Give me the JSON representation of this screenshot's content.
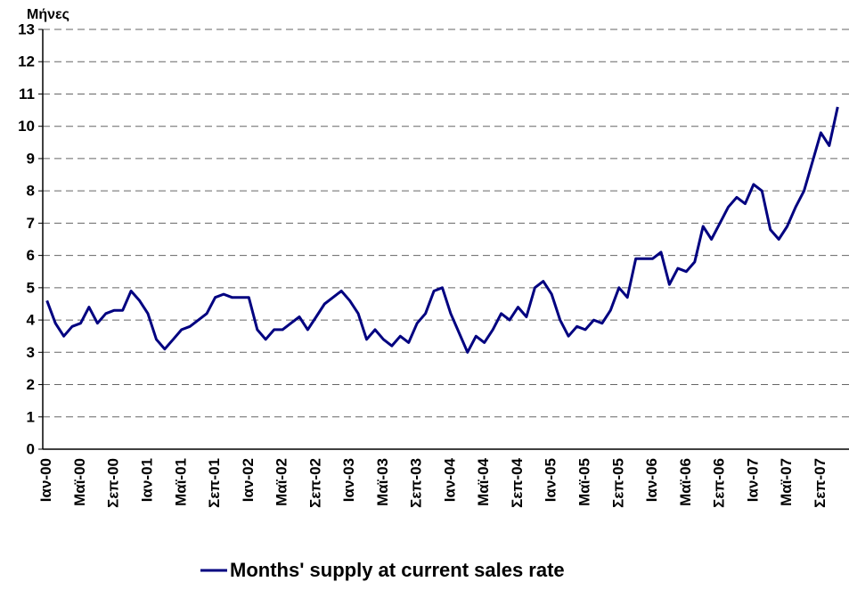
{
  "chart_data": {
    "type": "line",
    "y_label": "Μήνες",
    "categories": [
      "Ιαν-00",
      null,
      null,
      null,
      "Μαϊ-00",
      null,
      null,
      null,
      "Σεπ-00",
      null,
      null,
      null,
      "Ιαν-01",
      null,
      null,
      null,
      "Μαϊ-01",
      null,
      null,
      null,
      "Σεπ-01",
      null,
      null,
      null,
      "Ιαν-02",
      null,
      null,
      null,
      "Μαϊ-02",
      null,
      null,
      null,
      "Σεπ-02",
      null,
      null,
      null,
      "Ιαν-03",
      null,
      null,
      null,
      "Μαϊ-03",
      null,
      null,
      null,
      "Σεπ-03",
      null,
      null,
      null,
      "Ιαν-04",
      null,
      null,
      null,
      "Μαϊ-04",
      null,
      null,
      null,
      "Σεπ-04",
      null,
      null,
      null,
      "Ιαν-05",
      null,
      null,
      null,
      "Μαϊ-05",
      null,
      null,
      null,
      "Σεπ-05",
      null,
      null,
      null,
      "Ιαν-06",
      null,
      null,
      null,
      "Μαϊ-06",
      null,
      null,
      null,
      "Σεπ-06",
      null,
      null,
      null,
      "Ιαν-07",
      null,
      null,
      null,
      "Μαϊ-07",
      null,
      null,
      null,
      "Σεπ-07",
      null,
      null
    ],
    "series": [
      {
        "name": "Months' supply at current sales rate",
        "color": "#000080",
        "values": [
          4.6,
          3.9,
          3.5,
          3.8,
          3.9,
          4.4,
          3.9,
          4.2,
          4.3,
          4.3,
          4.9,
          4.6,
          4.2,
          3.4,
          3.1,
          3.4,
          3.7,
          3.8,
          4.0,
          4.2,
          4.7,
          4.8,
          4.7,
          4.7,
          4.7,
          3.7,
          3.4,
          3.7,
          3.7,
          3.9,
          4.1,
          3.7,
          4.1,
          4.5,
          4.7,
          4.9,
          4.6,
          4.2,
          3.4,
          3.7,
          3.4,
          3.2,
          3.5,
          3.3,
          3.9,
          4.2,
          4.9,
          5.0,
          4.2,
          3.6,
          3.0,
          3.5,
          3.3,
          3.7,
          4.2,
          4.0,
          4.4,
          4.1,
          5.0,
          5.2,
          4.8,
          4.0,
          3.5,
          3.8,
          3.7,
          4.0,
          3.9,
          4.3,
          5.0,
          4.7,
          5.9,
          5.9,
          5.9,
          6.1,
          5.1,
          5.6,
          5.5,
          5.8,
          6.9,
          6.5,
          7.0,
          7.5,
          7.8,
          7.6,
          8.2,
          8.0,
          6.8,
          6.5,
          6.9,
          7.5,
          8.0,
          8.9,
          9.8,
          9.4,
          10.6
        ]
      }
    ],
    "ylim": [
      0,
      13
    ],
    "yticks": [
      0,
      1,
      2,
      3,
      4,
      5,
      6,
      7,
      8,
      9,
      10,
      11,
      12,
      13
    ],
    "grid": true,
    "legend": "bottom"
  }
}
